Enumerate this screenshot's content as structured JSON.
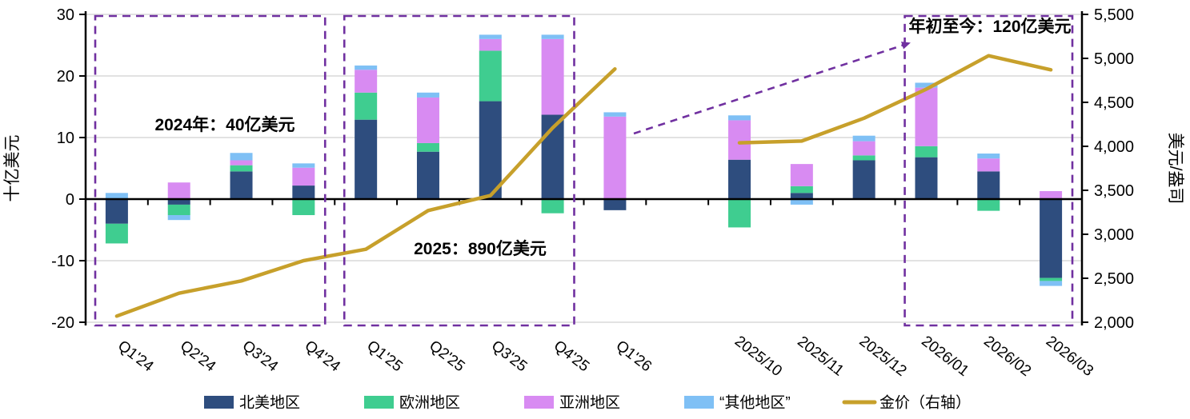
{
  "chart_data": {
    "type": "bar",
    "subtype": "stacked-column-with-line",
    "title": "",
    "categories": [
      "Q1'24",
      "Q2'24",
      "Q3'24",
      "Q4'24",
      "Q1'25",
      "Q2'25",
      "Q3'25",
      "Q4'25",
      "Q1'26",
      "",
      "2025/10",
      "2025/11",
      "2025/12",
      "2026/01",
      "2026/02",
      "2026/03"
    ],
    "bar_series": [
      {
        "name": "北美地区",
        "color": "#2E4D7E",
        "values": [
          -4.0,
          -0.9,
          4.5,
          2.2,
          12.9,
          7.7,
          15.9,
          13.7,
          -1.8,
          null,
          6.4,
          1.0,
          6.3,
          6.8,
          4.5,
          -12.8
        ]
      },
      {
        "name": "欧洲地区",
        "color": "#3FCD90",
        "values": [
          -3.2,
          -1.7,
          1.0,
          -2.6,
          4.4,
          1.4,
          8.2,
          -2.3,
          0,
          null,
          -4.6,
          1.1,
          0.8,
          1.8,
          -1.9,
          -0.5
        ]
      },
      {
        "name": "亚洲地区",
        "color": "#D88BF2",
        "values": [
          0,
          2.7,
          0.8,
          2.9,
          3.7,
          7.4,
          1.9,
          12.3,
          13.4,
          null,
          6.4,
          3.6,
          2.3,
          9.5,
          2.1,
          1.3
        ]
      },
      {
        "name": "“其他地区”",
        "color": "#7FC0F5",
        "values": [
          1.0,
          -0.8,
          1.2,
          0.7,
          0.7,
          0.8,
          0.7,
          0.7,
          0.7,
          null,
          0.8,
          -0.9,
          0.9,
          0.8,
          0.8,
          -0.8
        ]
      }
    ],
    "line_series": {
      "name": "金价（右轴）",
      "color": "#C7A02B",
      "axis": "right",
      "values": [
        2070,
        2330,
        2470,
        2700,
        2830,
        3270,
        3440,
        4210,
        4880,
        null,
        4040,
        4060,
        4320,
        4650,
        5030,
        4870
      ]
    },
    "left_axis": {
      "title": "十亿美元",
      "min": -20,
      "max": 30,
      "tick_step": 10,
      "tick_labels": [
        "30",
        "20",
        "10",
        "0",
        "-10",
        "-20"
      ]
    },
    "right_axis": {
      "title": "美元/盎司",
      "min": 2000,
      "max": 5500,
      "tick_step": 500,
      "tick_labels": [
        "5,500",
        "5,000",
        "4,500",
        "4,000",
        "3,500",
        "3,000",
        "2,500",
        "2,000"
      ]
    },
    "annotations": [
      {
        "id": "total-2024",
        "text": "2024年：40亿美元"
      },
      {
        "id": "total-2025",
        "text": "2025：890亿美元"
      },
      {
        "id": "total-ytd",
        "text": "年初至今：120亿美元"
      }
    ],
    "group_boxes": [
      {
        "from_index": 0,
        "to_index": 3,
        "annotation": "2024年：40亿美元"
      },
      {
        "from_index": 4,
        "to_index": 7,
        "annotation": "2025：890亿美元"
      },
      {
        "from_index": 13,
        "to_index": 15,
        "annotation": "年初至今：120亿美元"
      }
    ],
    "legend": [
      "北美地区",
      "欧洲地区",
      "亚洲地区",
      "“其他地区”",
      "金价（右轴）"
    ],
    "legend_position": "bottom",
    "grid": "horizontal",
    "colors": {
      "annotation": "#7030A0",
      "grid": "#D9D9D9",
      "axis": "#000000",
      "background": "#FFFFFF"
    }
  }
}
